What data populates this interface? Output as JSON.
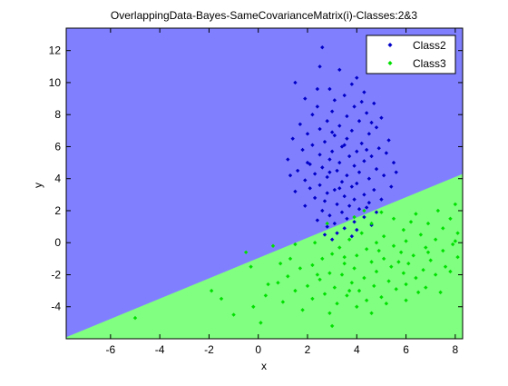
{
  "chart_data": {
    "type": "scatter",
    "title": "OverlappingData-Bayes-SameCovarianceMatrix(i)-Classes:2&3",
    "xlabel": "x",
    "ylabel": "y",
    "xlim": [
      -7.8,
      8.3
    ],
    "ylim": [
      -6.0,
      13.4
    ],
    "xticks": [
      -6,
      -4,
      -2,
      0,
      2,
      4,
      6,
      8
    ],
    "yticks": [
      -4,
      -2,
      0,
      2,
      4,
      6,
      8,
      10,
      12
    ],
    "grid": false,
    "legend_position": "top-right",
    "decision_boundary": {
      "description": "linear Bayes decision boundary",
      "points": [
        [
          -7.8,
          -5.9
        ],
        [
          8.3,
          4.3
        ]
      ],
      "region_above": "Class2",
      "region_below": "Class3"
    },
    "regions": {
      "Class2": "#8080ff",
      "Class3": "#80ff80"
    },
    "series": [
      {
        "name": "Class2",
        "color": "#0000c8",
        "marker": "diamond",
        "points": [
          [
            2.6,
            12.2
          ],
          [
            2.5,
            11.0
          ],
          [
            3.3,
            10.8
          ],
          [
            4.0,
            10.3
          ],
          [
            1.5,
            10.0
          ],
          [
            3.8,
            9.9
          ],
          [
            2.9,
            9.6
          ],
          [
            4.3,
            9.4
          ],
          [
            3.5,
            9.2
          ],
          [
            1.9,
            9.0
          ],
          [
            3.1,
            8.9
          ],
          [
            4.7,
            8.7
          ],
          [
            2.4,
            8.5
          ],
          [
            3.9,
            8.5
          ],
          [
            3.0,
            8.2
          ],
          [
            4.4,
            8.1
          ],
          [
            2.2,
            8.0
          ],
          [
            3.6,
            7.9
          ],
          [
            5.0,
            7.8
          ],
          [
            2.8,
            7.6
          ],
          [
            4.1,
            7.6
          ],
          [
            1.7,
            7.4
          ],
          [
            3.3,
            7.3
          ],
          [
            4.8,
            7.2
          ],
          [
            2.5,
            7.1
          ],
          [
            3.8,
            7.0
          ],
          [
            2.0,
            6.8
          ],
          [
            4.5,
            6.8
          ],
          [
            3.1,
            6.7
          ],
          [
            1.4,
            6.5
          ],
          [
            3.6,
            6.5
          ],
          [
            5.3,
            6.4
          ],
          [
            2.7,
            6.3
          ],
          [
            4.2,
            6.2
          ],
          [
            2.2,
            6.1
          ],
          [
            3.4,
            6.0
          ],
          [
            4.9,
            5.9
          ],
          [
            1.8,
            5.8
          ],
          [
            3.0,
            5.7
          ],
          [
            4.0,
            5.7
          ],
          [
            2.5,
            5.5
          ],
          [
            3.7,
            5.4
          ],
          [
            4.6,
            5.4
          ],
          [
            1.2,
            5.2
          ],
          [
            2.9,
            5.2
          ],
          [
            4.3,
            5.1
          ],
          [
            3.3,
            5.0
          ],
          [
            5.5,
            5.0
          ],
          [
            2.1,
            4.9
          ],
          [
            3.9,
            4.8
          ],
          [
            2.6,
            4.7
          ],
          [
            4.8,
            4.6
          ],
          [
            1.6,
            4.5
          ],
          [
            3.2,
            4.5
          ],
          [
            4.1,
            4.4
          ],
          [
            2.3,
            4.3
          ],
          [
            3.6,
            4.2
          ],
          [
            5.1,
            4.2
          ],
          [
            2.8,
            4.1
          ],
          [
            4.5,
            4.0
          ],
          [
            1.9,
            3.9
          ],
          [
            3.4,
            3.8
          ],
          [
            4.0,
            3.7
          ],
          [
            2.5,
            3.6
          ],
          [
            3.8,
            3.5
          ],
          [
            5.4,
            3.5
          ],
          [
            2.1,
            3.4
          ],
          [
            3.1,
            3.3
          ],
          [
            4.7,
            3.3
          ],
          [
            1.5,
            3.2
          ],
          [
            2.8,
            3.1
          ],
          [
            4.3,
            3.0
          ],
          [
            3.5,
            2.9
          ],
          [
            2.3,
            2.8
          ],
          [
            3.9,
            2.7
          ],
          [
            5.0,
            2.7
          ],
          [
            2.7,
            2.6
          ],
          [
            4.5,
            2.5
          ],
          [
            3.2,
            2.4
          ],
          [
            1.9,
            2.3
          ],
          [
            3.7,
            2.3
          ],
          [
            4.1,
            2.1
          ],
          [
            2.6,
            2.0
          ],
          [
            3.4,
            1.9
          ],
          [
            4.8,
            1.9
          ],
          [
            2.9,
            1.7
          ],
          [
            4.3,
            1.6
          ],
          [
            3.6,
            1.5
          ],
          [
            2.4,
            1.4
          ],
          [
            3.9,
            1.3
          ],
          [
            3.1,
            1.2
          ],
          [
            4.6,
            1.1
          ],
          [
            2.8,
            1.0
          ],
          [
            3.5,
            0.9
          ],
          [
            4.0,
            0.8
          ],
          [
            3.2,
            0.6
          ],
          [
            2.7,
            0.5
          ],
          [
            3.8,
            0.4
          ],
          [
            3.0,
            0.2
          ],
          [
            4.4,
            2.2
          ],
          [
            2.0,
            5.0
          ],
          [
            5.2,
            5.6
          ],
          [
            3.0,
            6.9
          ],
          [
            4.6,
            7.5
          ],
          [
            1.3,
            4.2
          ],
          [
            5.6,
            4.4
          ],
          [
            2.4,
            9.6
          ],
          [
            4.2,
            8.8
          ],
          [
            3.3,
            3.4
          ],
          [
            3.5,
            6.1
          ],
          [
            2.9,
            4.4
          ],
          [
            4.4,
            5.8
          ]
        ]
      },
      {
        "name": "Class3",
        "color": "#00e000",
        "marker": "diamond",
        "points": [
          [
            8.0,
            2.4
          ],
          [
            7.3,
            2.0
          ],
          [
            6.4,
            1.8
          ],
          [
            7.8,
            1.5
          ],
          [
            5.5,
            1.5
          ],
          [
            6.9,
            1.2
          ],
          [
            4.6,
            1.2
          ],
          [
            7.5,
            0.9
          ],
          [
            5.9,
            0.8
          ],
          [
            8.1,
            0.6
          ],
          [
            4.2,
            0.6
          ],
          [
            6.6,
            0.5
          ],
          [
            5.1,
            0.4
          ],
          [
            7.2,
            0.2
          ],
          [
            3.7,
            0.2
          ],
          [
            6.0,
            0.1
          ],
          [
            4.8,
            0.0
          ],
          [
            7.9,
            -0.1
          ],
          [
            5.5,
            -0.2
          ],
          [
            3.3,
            -0.3
          ],
          [
            6.8,
            -0.3
          ],
          [
            4.4,
            -0.4
          ],
          [
            7.5,
            -0.5
          ],
          [
            5.8,
            -0.6
          ],
          [
            3.0,
            -0.7
          ],
          [
            6.3,
            -0.8
          ],
          [
            4.0,
            -0.8
          ],
          [
            8.1,
            -0.9
          ],
          [
            5.1,
            -1.0
          ],
          [
            2.6,
            -1.0
          ],
          [
            7.0,
            -1.1
          ],
          [
            4.6,
            -1.2
          ],
          [
            3.5,
            -1.3
          ],
          [
            6.1,
            -1.3
          ],
          [
            2.2,
            -1.4
          ],
          [
            5.4,
            -1.5
          ],
          [
            7.6,
            -1.5
          ],
          [
            3.9,
            -1.6
          ],
          [
            1.7,
            -1.6
          ],
          [
            6.7,
            -1.7
          ],
          [
            4.8,
            -1.8
          ],
          [
            2.9,
            -1.9
          ],
          [
            5.9,
            -1.9
          ],
          [
            3.4,
            -2.0
          ],
          [
            7.2,
            -2.0
          ],
          [
            1.2,
            -2.1
          ],
          [
            4.3,
            -2.2
          ],
          [
            6.4,
            -2.2
          ],
          [
            2.5,
            -2.3
          ],
          [
            5.3,
            -2.4
          ],
          [
            3.8,
            -2.5
          ],
          [
            0.8,
            -2.5
          ],
          [
            6.0,
            -2.6
          ],
          [
            2.0,
            -2.7
          ],
          [
            4.7,
            -2.7
          ],
          [
            3.1,
            -2.8
          ],
          [
            5.6,
            -2.9
          ],
          [
            1.5,
            -3.0
          ],
          [
            4.1,
            -3.0
          ],
          [
            6.5,
            -3.1
          ],
          [
            2.7,
            -3.2
          ],
          [
            3.6,
            -3.3
          ],
          [
            0.3,
            -3.3
          ],
          [
            5.0,
            -3.4
          ],
          [
            2.2,
            -3.5
          ],
          [
            4.4,
            -3.6
          ],
          [
            1.0,
            -3.7
          ],
          [
            3.2,
            -3.8
          ],
          [
            -1.5,
            -3.5
          ],
          [
            -0.2,
            -4.0
          ],
          [
            1.8,
            -4.2
          ],
          [
            2.9,
            -4.4
          ],
          [
            -1.0,
            -4.5
          ],
          [
            -5.0,
            -4.7
          ],
          [
            0.1,
            -5.0
          ],
          [
            -0.5,
            -0.6
          ],
          [
            0.6,
            -0.2
          ],
          [
            1.5,
            -0.1
          ],
          [
            2.3,
            0.0
          ],
          [
            -0.3,
            -1.5
          ],
          [
            0.9,
            -1.3
          ],
          [
            3.0,
            -5.2
          ],
          [
            4.0,
            -4.0
          ],
          [
            5.2,
            -3.8
          ],
          [
            6.8,
            -2.8
          ],
          [
            7.8,
            -1.8
          ],
          [
            8.0,
            0.1
          ],
          [
            6.2,
            1.3
          ],
          [
            5.0,
            1.9
          ],
          [
            4.3,
            2.0
          ],
          [
            3.9,
            1.6
          ],
          [
            2.8,
            1.2
          ],
          [
            3.5,
            -0.9
          ],
          [
            4.9,
            -0.5
          ],
          [
            5.7,
            -1.2
          ],
          [
            6.9,
            -0.6
          ],
          [
            2.4,
            -2.0
          ],
          [
            1.3,
            -1.0
          ],
          [
            0.4,
            -2.6
          ],
          [
            -1.9,
            -3.0
          ],
          [
            7.4,
            -3.1
          ],
          [
            6.0,
            -3.6
          ],
          [
            4.6,
            -4.4
          ],
          [
            3.7,
            -3.0
          ]
        ]
      }
    ]
  }
}
